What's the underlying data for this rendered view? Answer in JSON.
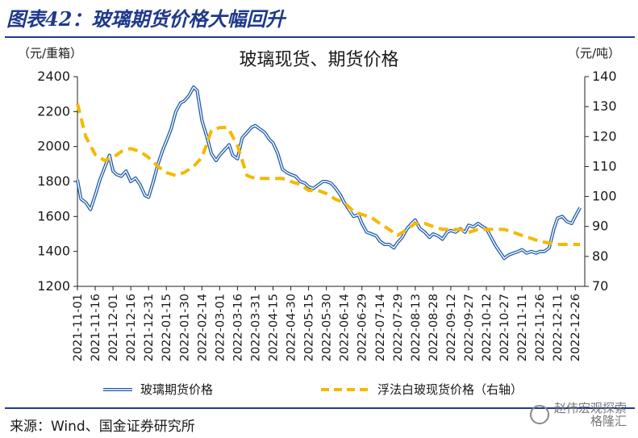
{
  "header": {
    "figure_title": "图表42：玻璃期货价格大幅回升",
    "left_unit": "（元/重箱）",
    "right_unit": "（元/吨）"
  },
  "footer": {
    "source": "来源：Wind、国金证券研究所",
    "watermark_line1": "赵伟宏观探索",
    "watermark_line2": "格隆汇"
  },
  "colors": {
    "futures": "#1f5ba8",
    "spot": "#f5b800",
    "brand": "#1f3a8a"
  },
  "chart_data": {
    "type": "line",
    "title": "玻璃现货、期货价格",
    "y_left": {
      "label": "（元/重箱）",
      "range": [
        1200,
        2400
      ],
      "ticks": [
        1200,
        1400,
        1600,
        1800,
        2000,
        2200,
        2400
      ]
    },
    "y_right": {
      "label": "（元/吨）",
      "range": [
        70,
        140
      ],
      "ticks": [
        70,
        80,
        90,
        100,
        110,
        120,
        130,
        140
      ]
    },
    "x_labels": [
      "2021-11-01",
      "2021-11-16",
      "2021-12-01",
      "2021-12-16",
      "2021-12-31",
      "2022-01-15",
      "2022-01-30",
      "2022-02-14",
      "2022-03-01",
      "2022-03-16",
      "2022-03-31",
      "2022-04-15",
      "2022-04-30",
      "2022-05-15",
      "2022-05-30",
      "2022-06-14",
      "2022-06-29",
      "2022-07-14",
      "2022-07-29",
      "2022-08-13",
      "2022-08-28",
      "2022-09-12",
      "2022-09-27",
      "2022-10-12",
      "2022-10-27",
      "2022-11-11",
      "2022-11-26",
      "2022-12-11",
      "2022-12-26"
    ],
    "grid": false,
    "legend_position": "bottom",
    "series": [
      {
        "name": "玻璃期货价格",
        "axis": "left",
        "style": "solid",
        "x": [
          "2021-11-01",
          "2021-11-04",
          "2021-11-08",
          "2021-11-12",
          "2021-11-16",
          "2021-11-20",
          "2021-11-24",
          "2021-11-28",
          "2021-12-01",
          "2021-12-04",
          "2021-12-08",
          "2021-12-12",
          "2021-12-16",
          "2021-12-20",
          "2021-12-24",
          "2021-12-28",
          "2021-12-31",
          "2022-01-04",
          "2022-01-08",
          "2022-01-12",
          "2022-01-15",
          "2022-01-19",
          "2022-01-23",
          "2022-01-27",
          "2022-01-30",
          "2022-02-03",
          "2022-02-07",
          "2022-02-10",
          "2022-02-14",
          "2022-02-18",
          "2022-02-22",
          "2022-02-26",
          "2022-03-01",
          "2022-03-05",
          "2022-03-09",
          "2022-03-12",
          "2022-03-16",
          "2022-03-20",
          "2022-03-24",
          "2022-03-28",
          "2022-03-31",
          "2022-04-04",
          "2022-04-08",
          "2022-04-12",
          "2022-04-15",
          "2022-04-19",
          "2022-04-23",
          "2022-04-27",
          "2022-04-30",
          "2022-05-04",
          "2022-05-08",
          "2022-05-12",
          "2022-05-15",
          "2022-05-19",
          "2022-05-23",
          "2022-05-27",
          "2022-05-30",
          "2022-06-03",
          "2022-06-07",
          "2022-06-11",
          "2022-06-14",
          "2022-06-18",
          "2022-06-22",
          "2022-06-26",
          "2022-06-29",
          "2022-07-03",
          "2022-07-07",
          "2022-07-11",
          "2022-07-14",
          "2022-07-18",
          "2022-07-22",
          "2022-07-26",
          "2022-07-29",
          "2022-08-02",
          "2022-08-06",
          "2022-08-10",
          "2022-08-13",
          "2022-08-17",
          "2022-08-21",
          "2022-08-25",
          "2022-08-28",
          "2022-09-01",
          "2022-09-05",
          "2022-09-09",
          "2022-09-12",
          "2022-09-16",
          "2022-09-20",
          "2022-09-24",
          "2022-09-27",
          "2022-10-01",
          "2022-10-05",
          "2022-10-09",
          "2022-10-12",
          "2022-10-16",
          "2022-10-20",
          "2022-10-24",
          "2022-10-27",
          "2022-10-31",
          "2022-11-04",
          "2022-11-08",
          "2022-11-11",
          "2022-11-15",
          "2022-11-19",
          "2022-11-23",
          "2022-11-26",
          "2022-11-30",
          "2022-12-04",
          "2022-12-08",
          "2022-12-11",
          "2022-12-15",
          "2022-12-19",
          "2022-12-23",
          "2022-12-26",
          "2022-12-30"
        ],
        "values": [
          1810,
          1700,
          1680,
          1640,
          1720,
          1810,
          1880,
          1950,
          1860,
          1840,
          1830,
          1860,
          1800,
          1820,
          1780,
          1720,
          1710,
          1800,
          1900,
          1980,
          2030,
          2100,
          2200,
          2250,
          2260,
          2290,
          2340,
          2320,
          2150,
          2060,
          1960,
          1920,
          1950,
          1980,
          2010,
          1950,
          1930,
          2050,
          2080,
          2110,
          2120,
          2100,
          2080,
          2040,
          2020,
          1960,
          1870,
          1850,
          1840,
          1830,
          1800,
          1790,
          1770,
          1760,
          1780,
          1800,
          1800,
          1790,
          1760,
          1720,
          1680,
          1640,
          1600,
          1610,
          1560,
          1510,
          1500,
          1490,
          1460,
          1440,
          1440,
          1420,
          1450,
          1480,
          1530,
          1560,
          1580,
          1530,
          1510,
          1480,
          1500,
          1490,
          1470,
          1510,
          1520,
          1510,
          1530,
          1510,
          1550,
          1540,
          1560,
          1540,
          1530,
          1480,
          1430,
          1390,
          1360,
          1380,
          1390,
          1400,
          1410,
          1390,
          1400,
          1390,
          1400,
          1400,
          1420,
          1530,
          1590,
          1600,
          1570,
          1560,
          1600,
          1650
        ]
      },
      {
        "name": "浮法白玻现货价格（右轴）",
        "axis": "right",
        "style": "dashed",
        "x": [
          "2021-11-01",
          "2021-11-08",
          "2021-11-16",
          "2021-11-24",
          "2021-12-01",
          "2021-12-08",
          "2021-12-16",
          "2021-12-24",
          "2021-12-31",
          "2022-01-08",
          "2022-01-15",
          "2022-01-23",
          "2022-01-30",
          "2022-02-07",
          "2022-02-14",
          "2022-02-22",
          "2022-03-01",
          "2022-03-08",
          "2022-03-16",
          "2022-03-24",
          "2022-03-31",
          "2022-04-08",
          "2022-04-15",
          "2022-04-23",
          "2022-04-30",
          "2022-05-08",
          "2022-05-15",
          "2022-05-23",
          "2022-05-30",
          "2022-06-07",
          "2022-06-14",
          "2022-06-22",
          "2022-06-29",
          "2022-07-07",
          "2022-07-14",
          "2022-07-22",
          "2022-07-29",
          "2022-08-06",
          "2022-08-13",
          "2022-08-21",
          "2022-08-28",
          "2022-09-05",
          "2022-09-12",
          "2022-09-20",
          "2022-09-27",
          "2022-10-05",
          "2022-10-12",
          "2022-10-20",
          "2022-10-27",
          "2022-11-04",
          "2022-11-11",
          "2022-11-19",
          "2022-11-26",
          "2022-12-04",
          "2022-12-11",
          "2022-12-19",
          "2022-12-26",
          "2022-12-30"
        ],
        "values": [
          131,
          120,
          114,
          112,
          113,
          115,
          116,
          115,
          113,
          110,
          108,
          107,
          108,
          110,
          113,
          122,
          123,
          123,
          117,
          107,
          106,
          106,
          106,
          106,
          105,
          104,
          102,
          102,
          101,
          99,
          98,
          95,
          94,
          93,
          91,
          89,
          87,
          89,
          91,
          91,
          90,
          89,
          89,
          89,
          88,
          89,
          89,
          89,
          89,
          88,
          87,
          86,
          85,
          84.5,
          84,
          84,
          84,
          84
        ]
      }
    ]
  }
}
